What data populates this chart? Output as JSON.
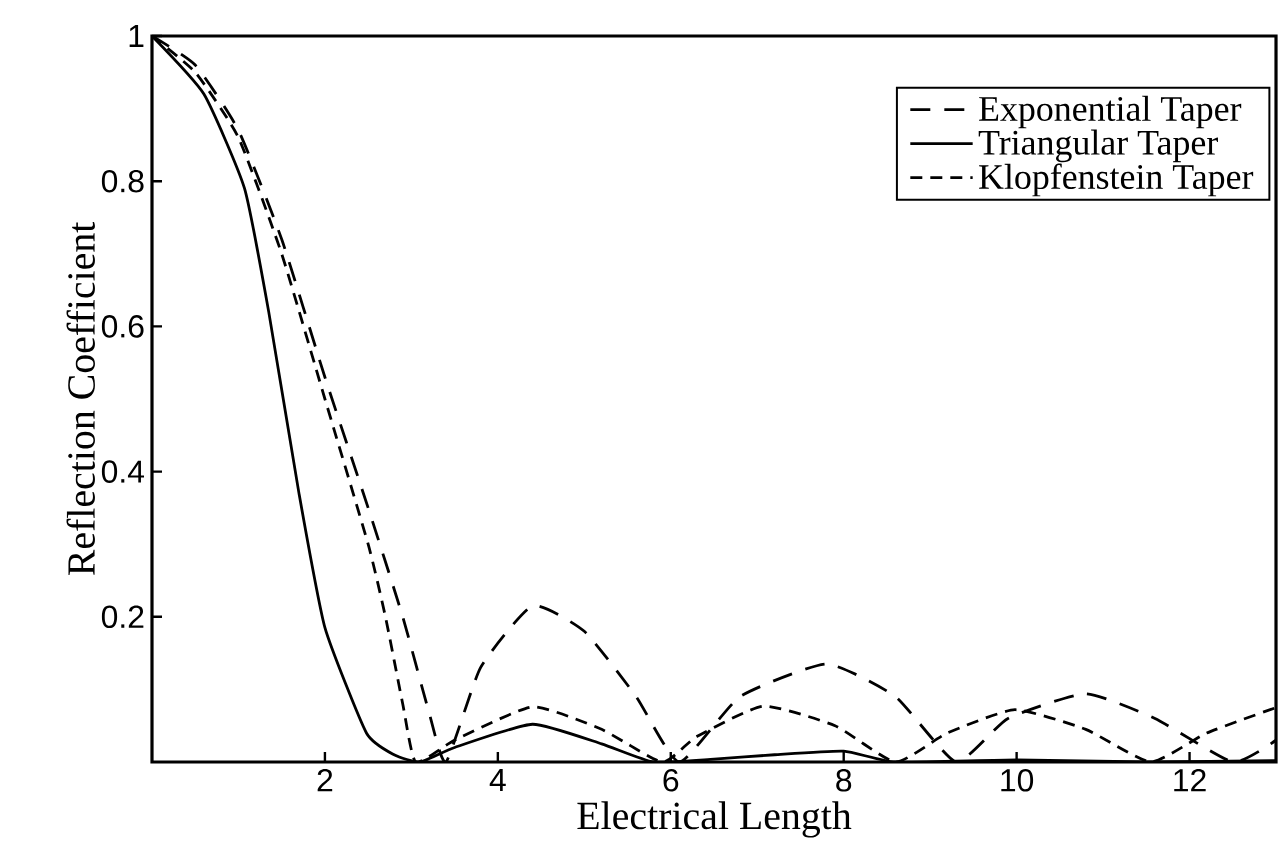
{
  "chart_data": {
    "type": "line",
    "xlabel": "Electrical Length",
    "ylabel": "Reflection Coefficient",
    "xlim": [
      0,
      13
    ],
    "ylim": [
      0,
      1
    ],
    "xticks": [
      2,
      4,
      6,
      8,
      10,
      12
    ],
    "yticks": [
      0.2,
      0.4,
      0.6,
      0.8,
      1
    ],
    "legend": "top right",
    "grid": false,
    "series": [
      {
        "name": "Exponential Taper",
        "color": "#000000",
        "line_style": "dashed",
        "x": [
          0,
          0.5,
          1,
          1.5,
          2,
          2.5,
          2.9,
          3.2,
          3.4,
          3.8,
          4.4,
          5,
          5.6,
          6.1,
          6.8,
          7.8,
          8.6,
          9.3,
          9.9,
          10.8,
          11.6,
          12.5,
          13
        ],
        "values": [
          1,
          0.96,
          0.87,
          0.72,
          0.53,
          0.35,
          0.2,
          0.07,
          0.0,
          0.13,
          0.215,
          0.18,
          0.09,
          0.0,
          0.09,
          0.135,
          0.09,
          0.0,
          0.06,
          0.094,
          0.06,
          0.0,
          0.03
        ]
      },
      {
        "name": "Triangular Taper",
        "color": "#000000",
        "line_style": "solid",
        "x": [
          0,
          0.6,
          1.07,
          1.35,
          1.7,
          2.0,
          2.48,
          2.8,
          3.1,
          3.5,
          4.4,
          5.2,
          5.8,
          6.5,
          7.2,
          8.0,
          8.6,
          10,
          11.5,
          13
        ],
        "values": [
          1,
          0.92,
          0.79,
          0.62,
          0.37,
          0.185,
          0.04,
          0.01,
          0.0,
          0.02,
          0.052,
          0.025,
          0.0,
          0.004,
          0.01,
          0.015,
          0.0,
          0.003,
          0.0,
          0.002
        ]
      },
      {
        "name": "Klopfenstein Taper",
        "color": "#000000",
        "line_style": "dashed",
        "x": [
          0,
          0.5,
          1,
          1.5,
          2,
          2.5,
          2.7,
          2.9,
          3.05,
          3.5,
          4.4,
          5.2,
          5.9,
          6.3,
          7.07,
          7.9,
          8.6,
          9.2,
          9.98,
          10.8,
          11.55,
          12.2,
          13
        ],
        "values": [
          1,
          0.95,
          0.86,
          0.7,
          0.5,
          0.3,
          0.2,
          0.08,
          0.0,
          0.03,
          0.076,
          0.045,
          0.0,
          0.035,
          0.077,
          0.05,
          0.0,
          0.04,
          0.072,
          0.045,
          0.0,
          0.04,
          0.075
        ]
      }
    ]
  }
}
